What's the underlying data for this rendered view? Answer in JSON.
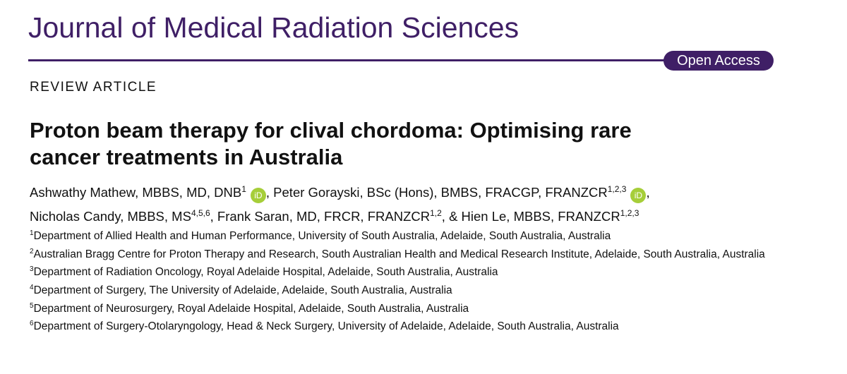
{
  "journal": {
    "title": "Journal of Medical Radiation Sciences",
    "access": "Open Access"
  },
  "article": {
    "type": "REVIEW ARTICLE",
    "title_lines": [
      "Proton beam therapy for clival chordoma: Optimising rare",
      "cancer treatments in Australia"
    ]
  },
  "orcid_icon": "iD",
  "author_lines": [
    [
      {
        "text": "Ashwathy Mathew,  MBBS, MD, DNB",
        "sup": "1",
        "orcid": true,
        "sep": ","
      },
      {
        "text": "Peter Gorayski,  BSc (Hons), BMBS, FRACGP, FRANZCR",
        "sup": "1,2,3",
        "orcid": true,
        "sep": ","
      }
    ],
    [
      {
        "text": "Nicholas Candy,  MBBS, MS",
        "sup": "4,5,6",
        "orcid": false,
        "sep": ","
      },
      {
        "text": "Frank Saran,  MD, FRCR, FRANZCR",
        "sup": "1,2",
        "orcid": false,
        "sep": ","
      },
      {
        "text": "& Hien Le,  MBBS, FRANZCR",
        "sup": "1,2,3",
        "orcid": false,
        "sep": ""
      }
    ]
  ],
  "affiliations": [
    {
      "num": "1",
      "text": "Department of Allied Health and Human Performance, University of South Australia, Adelaide, South Australia, Australia"
    },
    {
      "num": "2",
      "text": "Australian Bragg Centre for Proton Therapy and Research, South Australian Health and Medical Research Institute, Adelaide, South Australia, Australia"
    },
    {
      "num": "3",
      "text": "Department of Radiation Oncology, Royal Adelaide Hospital, Adelaide, South Australia, Australia"
    },
    {
      "num": "4",
      "text": "Department of Surgery, The University of Adelaide, Adelaide, South Australia, Australia"
    },
    {
      "num": "5",
      "text": "Department of Neurosurgery, Royal Adelaide Hospital, Adelaide, South Australia, Australia"
    },
    {
      "num": "6",
      "text": "Department of Surgery-Otolaryngology, Head & Neck Surgery, University of Adelaide, Adelaide, South Australia, Australia"
    }
  ]
}
